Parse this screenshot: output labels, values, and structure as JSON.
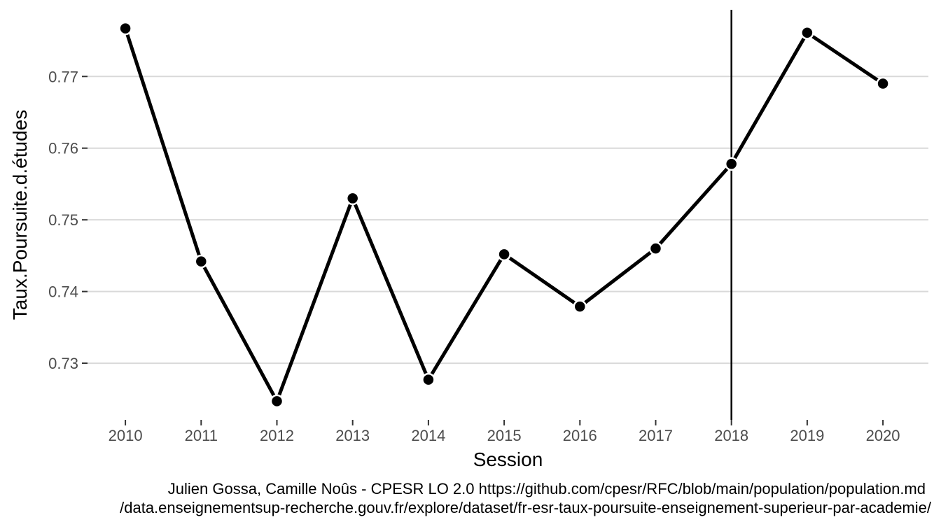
{
  "chart_data": {
    "type": "line",
    "xlabel": "Session",
    "ylabel": "Taux.Poursuite.d.études",
    "x": [
      2010,
      2011,
      2012,
      2013,
      2014,
      2015,
      2016,
      2017,
      2018,
      2019,
      2020
    ],
    "x_tick_labels": [
      "2010",
      "2011",
      "2012",
      "2013",
      "2014",
      "2015",
      "2016",
      "2017",
      "2018",
      "2019",
      "2020"
    ],
    "series": [
      {
        "values": [
          0.7767,
          0.7442,
          0.7247,
          0.753,
          0.7277,
          0.7452,
          0.7379,
          0.746,
          0.7578,
          0.7761,
          0.769
        ]
      }
    ],
    "y_ticks": [
      0.73,
      0.74,
      0.75,
      0.76,
      0.77
    ],
    "y_tick_labels": [
      "0.73",
      "0.74",
      "0.75",
      "0.76",
      "0.77"
    ],
    "ylim": [
      0.7221,
      0.7793
    ],
    "xlim": [
      2009.5,
      2020.6
    ],
    "vertical_reference_line_x": 2018,
    "grid": "horizontal",
    "line_color": "#000000",
    "grid_color": "#d9d9d9",
    "caption_lines": [
      "Julien Gossa, Camille Noûs - CPESR LO 2.0 https://github.com/cpesr/RFC/blob/main/population/population.md",
      "/data.enseignementsup-recherche.gouv.fr/explore/dataset/fr-esr-taux-poursuite-enseignement-superieur-par-academie/"
    ]
  }
}
